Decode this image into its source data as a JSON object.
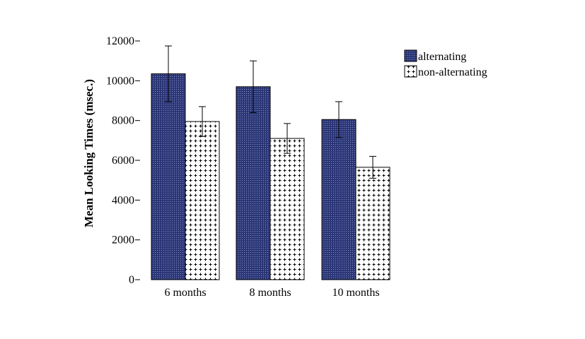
{
  "chart_data": {
    "type": "bar",
    "title": "",
    "xlabel": "",
    "ylabel": "Mean Looking Times (msec.)",
    "ylim": [
      0,
      12000
    ],
    "yticks": [
      0,
      2000,
      4000,
      6000,
      8000,
      10000,
      12000
    ],
    "categories": [
      "6 months",
      "8 months",
      "10 months"
    ],
    "series": [
      {
        "name": "alternating",
        "values": [
          10350,
          9700,
          8050
        ],
        "error": [
          1400,
          1300,
          900
        ],
        "color": "#2b3677"
      },
      {
        "name": "non-alternating",
        "values": [
          7950,
          7100,
          5650
        ],
        "error": [
          750,
          750,
          550
        ],
        "color": "#ffffff"
      }
    ],
    "legend_position": "top-right",
    "grid": false
  }
}
